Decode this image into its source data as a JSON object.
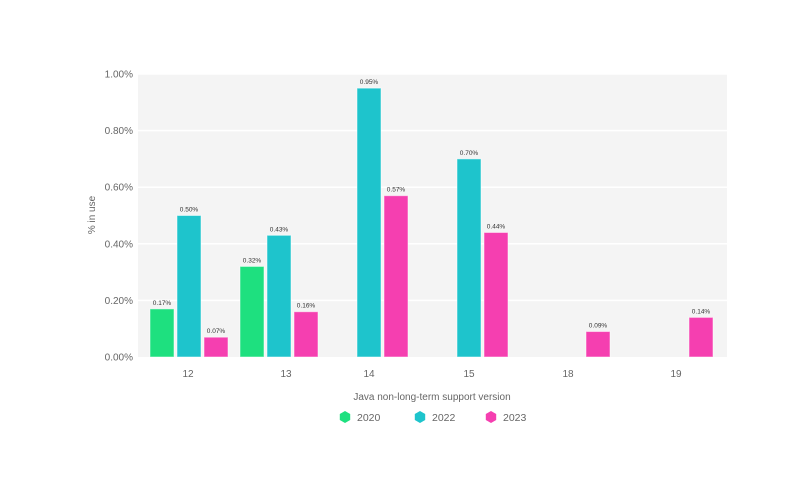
{
  "chart_data": {
    "type": "bar",
    "xlabel": "Java non-long-term support version",
    "ylabel": "% in use",
    "ylim": [
      0,
      1.0
    ],
    "yticks": [
      "0.00%",
      "0.20%",
      "0.40%",
      "0.60%",
      "0.80%",
      "1.00%"
    ],
    "grid": true,
    "legend_position": "bottom",
    "categories": [
      "12",
      "13",
      "14",
      "15",
      "18",
      "19"
    ],
    "series": [
      {
        "name": "2020",
        "color": "#1ee07f",
        "values": [
          0.17,
          0.32,
          null,
          null,
          null,
          null
        ],
        "labels": [
          "0.17%",
          "0.32%",
          null,
          null,
          null,
          null
        ]
      },
      {
        "name": "2022",
        "color": "#1ec4cc",
        "values": [
          0.5,
          0.43,
          0.95,
          0.7,
          null,
          null
        ],
        "labels": [
          "0.50%",
          "0.43%",
          "0.95%",
          "0.70%",
          null,
          null
        ]
      },
      {
        "name": "2023",
        "color": "#f53fb0",
        "values": [
          0.07,
          0.16,
          0.57,
          0.44,
          0.09,
          0.14
        ],
        "labels": [
          "0.07%",
          "0.16%",
          "0.57%",
          "0.44%",
          "0.09%",
          "0.14%"
        ]
      }
    ]
  }
}
